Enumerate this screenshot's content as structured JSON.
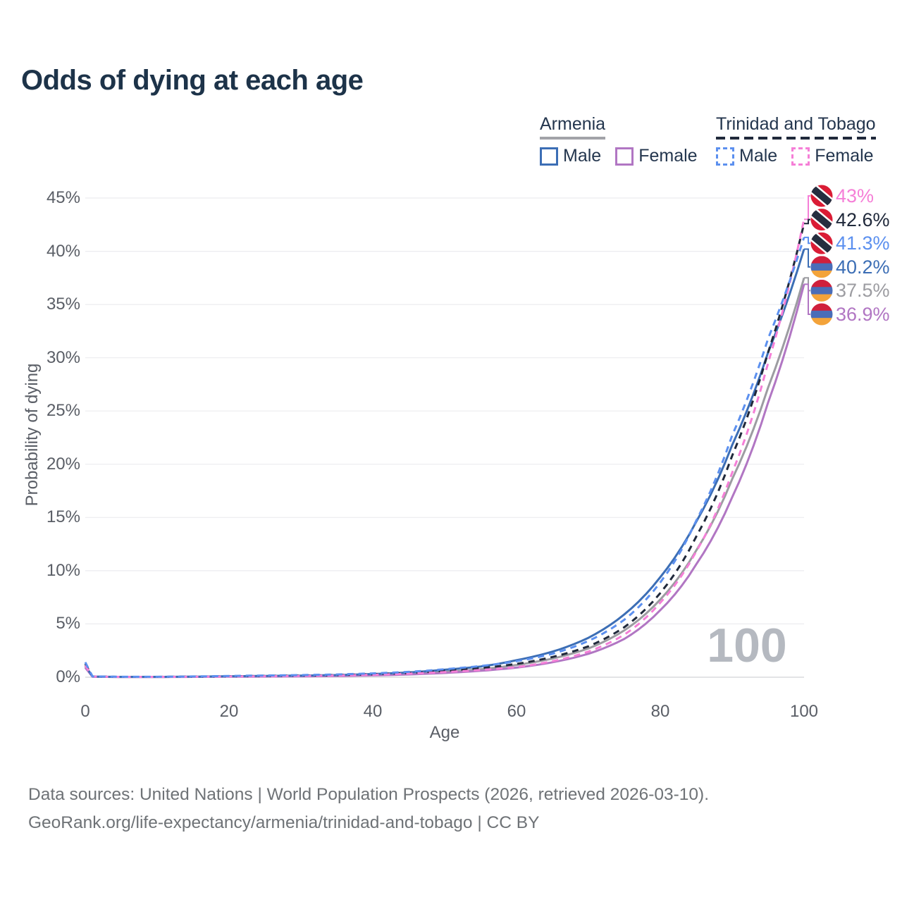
{
  "title": "Odds of dying at each age",
  "legend": {
    "groups": [
      {
        "name": "Armenia",
        "line_style": "solid",
        "items": [
          {
            "label": "Male",
            "series_id": "am_m"
          },
          {
            "label": "Female",
            "series_id": "am_f"
          }
        ]
      },
      {
        "name": "Trinidad and Tobago",
        "line_style": "dashed",
        "items": [
          {
            "label": "Male",
            "series_id": "tt_m"
          },
          {
            "label": "Female",
            "series_id": "tt_f"
          }
        ]
      }
    ]
  },
  "watermark_age": "100",
  "footer": {
    "line1": "Data sources: United Nations | World Population Prospects (2026, retrieved 2026-03-10).",
    "line2": "GeoRank.org/life-expectancy/armenia/trinidad-and-tobago | CC BY"
  },
  "colors": {
    "title_text": "#1d3349",
    "legend_text": "#24364e",
    "axis_text": "#5a5e66",
    "footer_text": "#6e7276",
    "watermark": "#b5b9c0",
    "gridline": "#ececef",
    "armenia_flag": [
      "#d0203c",
      "#4a6db8",
      "#f3a33a"
    ],
    "trinidad_flag": [
      "#da1c35",
      "#252e3f",
      "#ffffff"
    ]
  },
  "chart_data": {
    "type": "line",
    "title": "Odds of dying at each age",
    "xlabel": "Age",
    "ylabel": "Probability of dying",
    "xlim": [
      0,
      100
    ],
    "ylim": [
      0,
      45
    ],
    "grid": "horizontal",
    "legend_position": "top-right",
    "x_tick_labels": [
      "0",
      "20",
      "40",
      "60",
      "80",
      "100"
    ],
    "x_tick_values": [
      0,
      20,
      40,
      60,
      80,
      100
    ],
    "y_tick_labels": [
      "0%",
      "5%",
      "10%",
      "15%",
      "20%",
      "25%",
      "30%",
      "35%",
      "40%",
      "45%"
    ],
    "y_tick_values": [
      0,
      5,
      10,
      15,
      20,
      25,
      30,
      35,
      40,
      45
    ],
    "ages": [
      0,
      1,
      5,
      10,
      15,
      20,
      25,
      30,
      35,
      40,
      45,
      50,
      55,
      60,
      65,
      70,
      75,
      80,
      85,
      90,
      95,
      100
    ],
    "draw_order": [
      "am_all",
      "am_f",
      "am_m",
      "tt_all",
      "tt_f",
      "tt_m"
    ],
    "series": [
      {
        "id": "tt_f",
        "name": "Trinidad and Tobago — Female",
        "country": "Trinidad and Tobago",
        "sex": "Female",
        "line_style": "dashed",
        "color": "#f57fd7",
        "flag": "trinidad",
        "end_label": "43%",
        "end_value": 43.0,
        "values": [
          1.1,
          0.06,
          0.03,
          0.03,
          0.04,
          0.07,
          0.09,
          0.12,
          0.16,
          0.23,
          0.33,
          0.48,
          0.68,
          0.95,
          1.5,
          2.4,
          4.0,
          7.0,
          11.8,
          19.2,
          29.5,
          43.0
        ]
      },
      {
        "id": "tt_all",
        "name": "Trinidad and Tobago — Both sexes",
        "country": "Trinidad and Tobago",
        "sex": "Both",
        "line_style": "dashed",
        "color": "#20293b",
        "flag": "trinidad",
        "end_label": "42.6%",
        "end_value": 42.6,
        "values": [
          1.25,
          0.07,
          0.035,
          0.035,
          0.05,
          0.09,
          0.12,
          0.15,
          0.2,
          0.28,
          0.4,
          0.6,
          0.85,
          1.25,
          1.9,
          2.9,
          4.7,
          7.9,
          13.2,
          20.8,
          30.5,
          42.6
        ]
      },
      {
        "id": "tt_m",
        "name": "Trinidad and Tobago — Male",
        "country": "Trinidad and Tobago",
        "sex": "Male",
        "line_style": "dashed",
        "color": "#5c90ef",
        "flag": "trinidad",
        "end_label": "41.3%",
        "end_value": 41.3,
        "values": [
          1.4,
          0.08,
          0.04,
          0.04,
          0.07,
          0.12,
          0.16,
          0.2,
          0.26,
          0.36,
          0.5,
          0.75,
          1.05,
          1.5,
          2.2,
          3.4,
          5.4,
          8.9,
          14.7,
          22.7,
          31.8,
          41.3
        ]
      },
      {
        "id": "am_m",
        "name": "Armenia — Male",
        "country": "Armenia",
        "sex": "Male",
        "line_style": "solid",
        "color": "#3c6eb5",
        "flag": "armenia",
        "end_label": "40.2%",
        "end_value": 40.2,
        "values": [
          1.1,
          0.06,
          0.03,
          0.03,
          0.05,
          0.09,
          0.12,
          0.15,
          0.2,
          0.3,
          0.45,
          0.7,
          1.0,
          1.6,
          2.4,
          3.7,
          5.9,
          9.4,
          14.6,
          21.8,
          30.5,
          40.2
        ]
      },
      {
        "id": "am_all",
        "name": "Armenia — Both sexes",
        "country": "Armenia",
        "sex": "Both",
        "line_style": "solid",
        "color": "#9c9ca1",
        "flag": "armenia",
        "end_label": "37.5%",
        "end_value": 37.5,
        "values": [
          1.0,
          0.05,
          0.025,
          0.025,
          0.04,
          0.07,
          0.09,
          0.11,
          0.15,
          0.22,
          0.33,
          0.5,
          0.75,
          1.15,
          1.75,
          2.7,
          4.4,
          7.3,
          11.9,
          18.6,
          27.2,
          37.5
        ]
      },
      {
        "id": "am_f",
        "name": "Armenia — Female",
        "country": "Armenia",
        "sex": "Female",
        "line_style": "solid",
        "color": "#b176c3",
        "flag": "armenia",
        "end_label": "36.9%",
        "end_value": 36.9,
        "values": [
          0.9,
          0.05,
          0.02,
          0.02,
          0.03,
          0.05,
          0.06,
          0.08,
          0.11,
          0.17,
          0.26,
          0.4,
          0.6,
          0.9,
          1.4,
          2.2,
          3.6,
          6.3,
          10.6,
          16.9,
          25.8,
          36.9
        ]
      }
    ]
  }
}
